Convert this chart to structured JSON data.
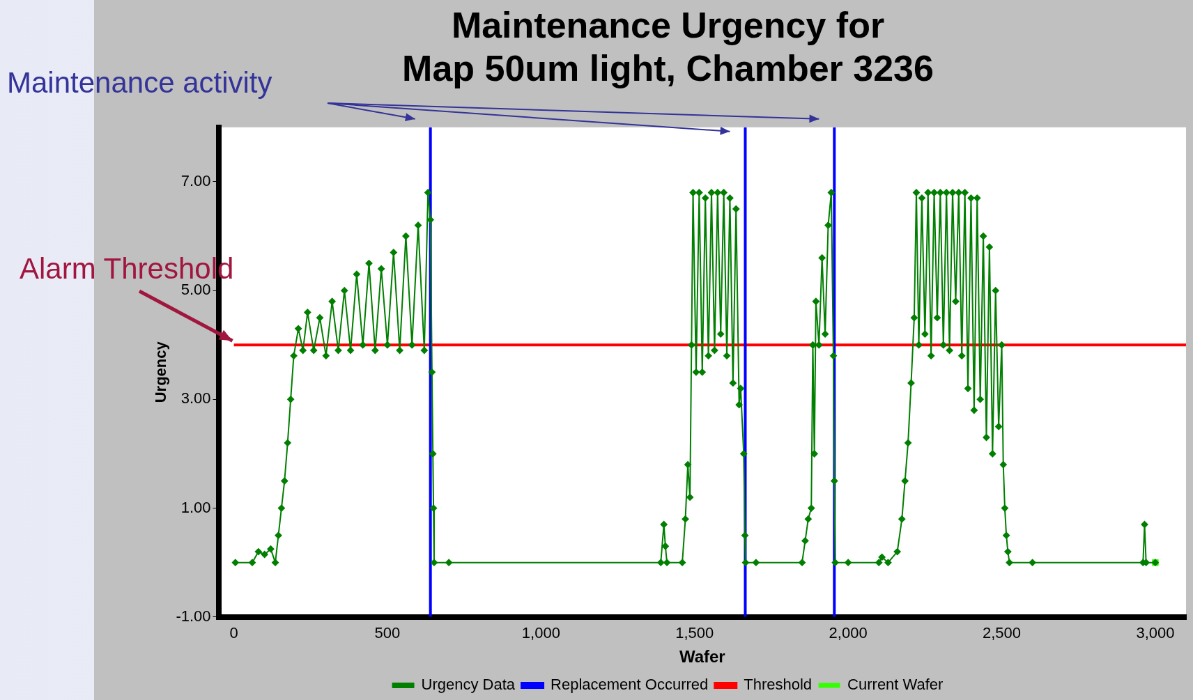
{
  "chart_data": {
    "type": "line",
    "title": [
      "Maintenance Urgency for",
      "Map 50um light, Chamber 3236"
    ],
    "xlabel": "Wafer",
    "ylabel": "Urgency",
    "xlim": [
      -50,
      3100
    ],
    "xticks": [
      0,
      500,
      {
        "value": 1000,
        "label": "1,000"
      },
      {
        "value": 1500,
        "label": "1,500"
      },
      {
        "value": 2000,
        "label": "2,000"
      },
      {
        "value": 2500,
        "label": "2,500"
      },
      {
        "value": 3000,
        "label": "3,000"
      }
    ],
    "ylim": [
      -1,
      8
    ],
    "yticks": [
      {
        "value": -1,
        "label": "-1.00"
      },
      {
        "value": 1,
        "label": "1.00"
      },
      {
        "value": 3,
        "label": "3.00"
      },
      {
        "value": 5,
        "label": "5.00"
      },
      {
        "value": 7,
        "label": "7.00"
      }
    ],
    "grid": false,
    "legend": "bottom",
    "line_style": "solid",
    "series": [
      {
        "name": "Urgency Data",
        "marker": "diamond",
        "color": "#007f00",
        "x": [
          5,
          60,
          80,
          100,
          120,
          135,
          145,
          155,
          165,
          175,
          185,
          195,
          210,
          225,
          240,
          260,
          280,
          300,
          320,
          340,
          360,
          380,
          400,
          420,
          440,
          460,
          480,
          500,
          520,
          540,
          560,
          580,
          600,
          620,
          632,
          640,
          645,
          648,
          650,
          652,
          700,
          1390,
          1400,
          1405,
          1410,
          1460,
          1470,
          1478,
          1485,
          1490,
          1495,
          1505,
          1515,
          1525,
          1535,
          1545,
          1555,
          1565,
          1575,
          1585,
          1595,
          1605,
          1615,
          1625,
          1635,
          1645,
          1650,
          1660,
          1664,
          1666,
          1700,
          1850,
          1860,
          1870,
          1880,
          1885,
          1890,
          1895,
          1905,
          1915,
          1925,
          1935,
          1945,
          1952,
          1955,
          1958,
          2000,
          2100,
          2110,
          2130,
          2160,
          2175,
          2185,
          2195,
          2205,
          2215,
          2222,
          2230,
          2240,
          2250,
          2260,
          2270,
          2280,
          2290,
          2300,
          2310,
          2320,
          2330,
          2340,
          2350,
          2360,
          2370,
          2380,
          2390,
          2400,
          2410,
          2420,
          2430,
          2440,
          2450,
          2460,
          2470,
          2480,
          2490,
          2500,
          2505,
          2510,
          2515,
          2520,
          2525,
          2600,
          2960,
          2965,
          2970,
          3000
        ],
        "values": [
          0,
          0,
          0.2,
          0.15,
          0.25,
          0,
          0.5,
          1.0,
          1.5,
          2.2,
          3.0,
          3.8,
          4.3,
          3.9,
          4.6,
          3.9,
          4.5,
          3.8,
          4.8,
          3.9,
          5.0,
          3.9,
          5.3,
          4.0,
          5.5,
          3.9,
          5.4,
          4.0,
          5.7,
          3.9,
          6.0,
          4.0,
          6.2,
          3.9,
          6.8,
          6.3,
          3.5,
          2.0,
          1.0,
          0,
          0,
          0,
          0.7,
          0.3,
          0,
          0,
          0.8,
          1.8,
          1.2,
          4.0,
          6.8,
          3.5,
          6.8,
          3.5,
          6.7,
          3.8,
          6.8,
          3.9,
          6.8,
          4.2,
          6.8,
          3.8,
          6.7,
          3.3,
          6.5,
          2.9,
          3.2,
          2.0,
          0.5,
          0,
          0,
          0,
          0.4,
          0.8,
          1.0,
          4.0,
          2.0,
          4.8,
          4.0,
          5.6,
          4.2,
          6.2,
          6.8,
          3.8,
          1.5,
          0,
          0,
          0,
          0.1,
          0,
          0.2,
          0.8,
          1.5,
          2.2,
          3.3,
          4.5,
          6.8,
          4.0,
          6.7,
          4.2,
          6.8,
          3.8,
          6.8,
          4.5,
          6.8,
          4.0,
          6.8,
          3.9,
          6.8,
          4.8,
          6.8,
          3.8,
          6.8,
          3.2,
          6.7,
          2.8,
          6.7,
          3.0,
          6.0,
          2.3,
          5.8,
          2.0,
          5.0,
          2.5,
          4.0,
          1.8,
          1.0,
          0.5,
          0.2,
          0,
          0,
          0,
          0.7,
          0,
          0
        ]
      },
      {
        "name": "Current Wafer",
        "type": "scatter",
        "marker": "square",
        "color": "#33ff00",
        "x": [
          3000
        ],
        "values": [
          0
        ]
      }
    ],
    "ref_lines": [
      {
        "axis": "x",
        "value": 640,
        "label": "Replacement Occurred",
        "color": "#0000ff"
      },
      {
        "axis": "x",
        "value": 1665,
        "color": "#0000ff"
      },
      {
        "axis": "x",
        "value": 1955,
        "color": "#0000ff"
      },
      {
        "axis": "y",
        "value": 4,
        "label": "Threshold",
        "color": "#ff0000"
      }
    ],
    "annotations": [
      "Maintenance activity",
      "Alarm Threshold"
    ]
  }
}
